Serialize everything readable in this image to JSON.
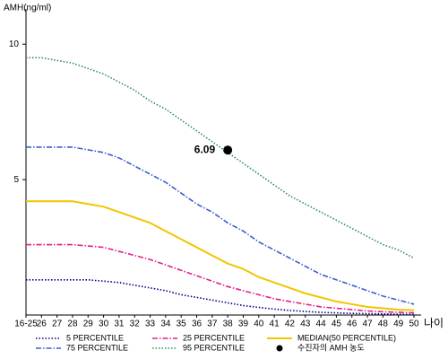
{
  "chart_data": {
    "type": "line",
    "title": "AMH(ng/ml)",
    "x_label": "나이",
    "categories": [
      "16-25",
      "26",
      "27",
      "28",
      "29",
      "30",
      "31",
      "32",
      "33",
      "34",
      "35",
      "36",
      "37",
      "38",
      "39",
      "40",
      "41",
      "42",
      "43",
      "44",
      "45",
      "46",
      "47",
      "48",
      "49",
      "50"
    ],
    "ylim": [
      0,
      11.3
    ],
    "yticks": [
      5,
      10
    ],
    "grid": false,
    "series": [
      {
        "name": "5 PERCENTILE",
        "color": "#00008b",
        "dash": "dotted",
        "values": [
          1.3,
          1.3,
          1.3,
          1.3,
          1.3,
          1.25,
          1.2,
          1.1,
          1.0,
          0.9,
          0.75,
          0.65,
          0.55,
          0.45,
          0.35,
          0.28,
          0.22,
          0.17,
          0.13,
          0.1,
          0.08,
          0.06,
          0.05,
          0.04,
          0.03,
          0.02
        ]
      },
      {
        "name": "25 PERCENTILE",
        "color": "#e0218a",
        "dash": "dashdot",
        "values": [
          2.6,
          2.6,
          2.6,
          2.6,
          2.55,
          2.5,
          2.35,
          2.2,
          2.05,
          1.85,
          1.65,
          1.45,
          1.25,
          1.05,
          0.9,
          0.75,
          0.6,
          0.5,
          0.4,
          0.3,
          0.25,
          0.2,
          0.15,
          0.12,
          0.1,
          0.08
        ]
      },
      {
        "name": "MEDIAN(50 PERCENTILE)",
        "color": "#f2c500",
        "dash": "solid",
        "values": [
          4.2,
          4.2,
          4.2,
          4.2,
          4.1,
          4.0,
          3.8,
          3.6,
          3.4,
          3.1,
          2.8,
          2.5,
          2.2,
          1.9,
          1.7,
          1.4,
          1.2,
          1.0,
          0.8,
          0.65,
          0.5,
          0.4,
          0.3,
          0.25,
          0.2,
          0.18
        ]
      },
      {
        "name": "75 PERCENTILE",
        "color": "#3a5fcd",
        "dash": "dashdot",
        "values": [
          6.2,
          6.2,
          6.2,
          6.2,
          6.1,
          6.0,
          5.8,
          5.5,
          5.2,
          4.9,
          4.5,
          4.1,
          3.8,
          3.4,
          3.1,
          2.7,
          2.4,
          2.1,
          1.8,
          1.5,
          1.3,
          1.1,
          0.9,
          0.7,
          0.55,
          0.4
        ]
      },
      {
        "name": "95 PERCENTILE",
        "color": "#2e8b57",
        "dash": "dotted",
        "values": [
          9.5,
          9.5,
          9.4,
          9.3,
          9.1,
          8.9,
          8.6,
          8.3,
          7.9,
          7.6,
          7.2,
          6.8,
          6.4,
          6.0,
          5.6,
          5.2,
          4.8,
          4.4,
          4.1,
          3.8,
          3.5,
          3.2,
          2.9,
          2.6,
          2.4,
          2.1
        ]
      }
    ],
    "marker": {
      "name": "수진자의 AMH 농도",
      "category": "38",
      "value": 6.09,
      "color": "#000000"
    }
  }
}
